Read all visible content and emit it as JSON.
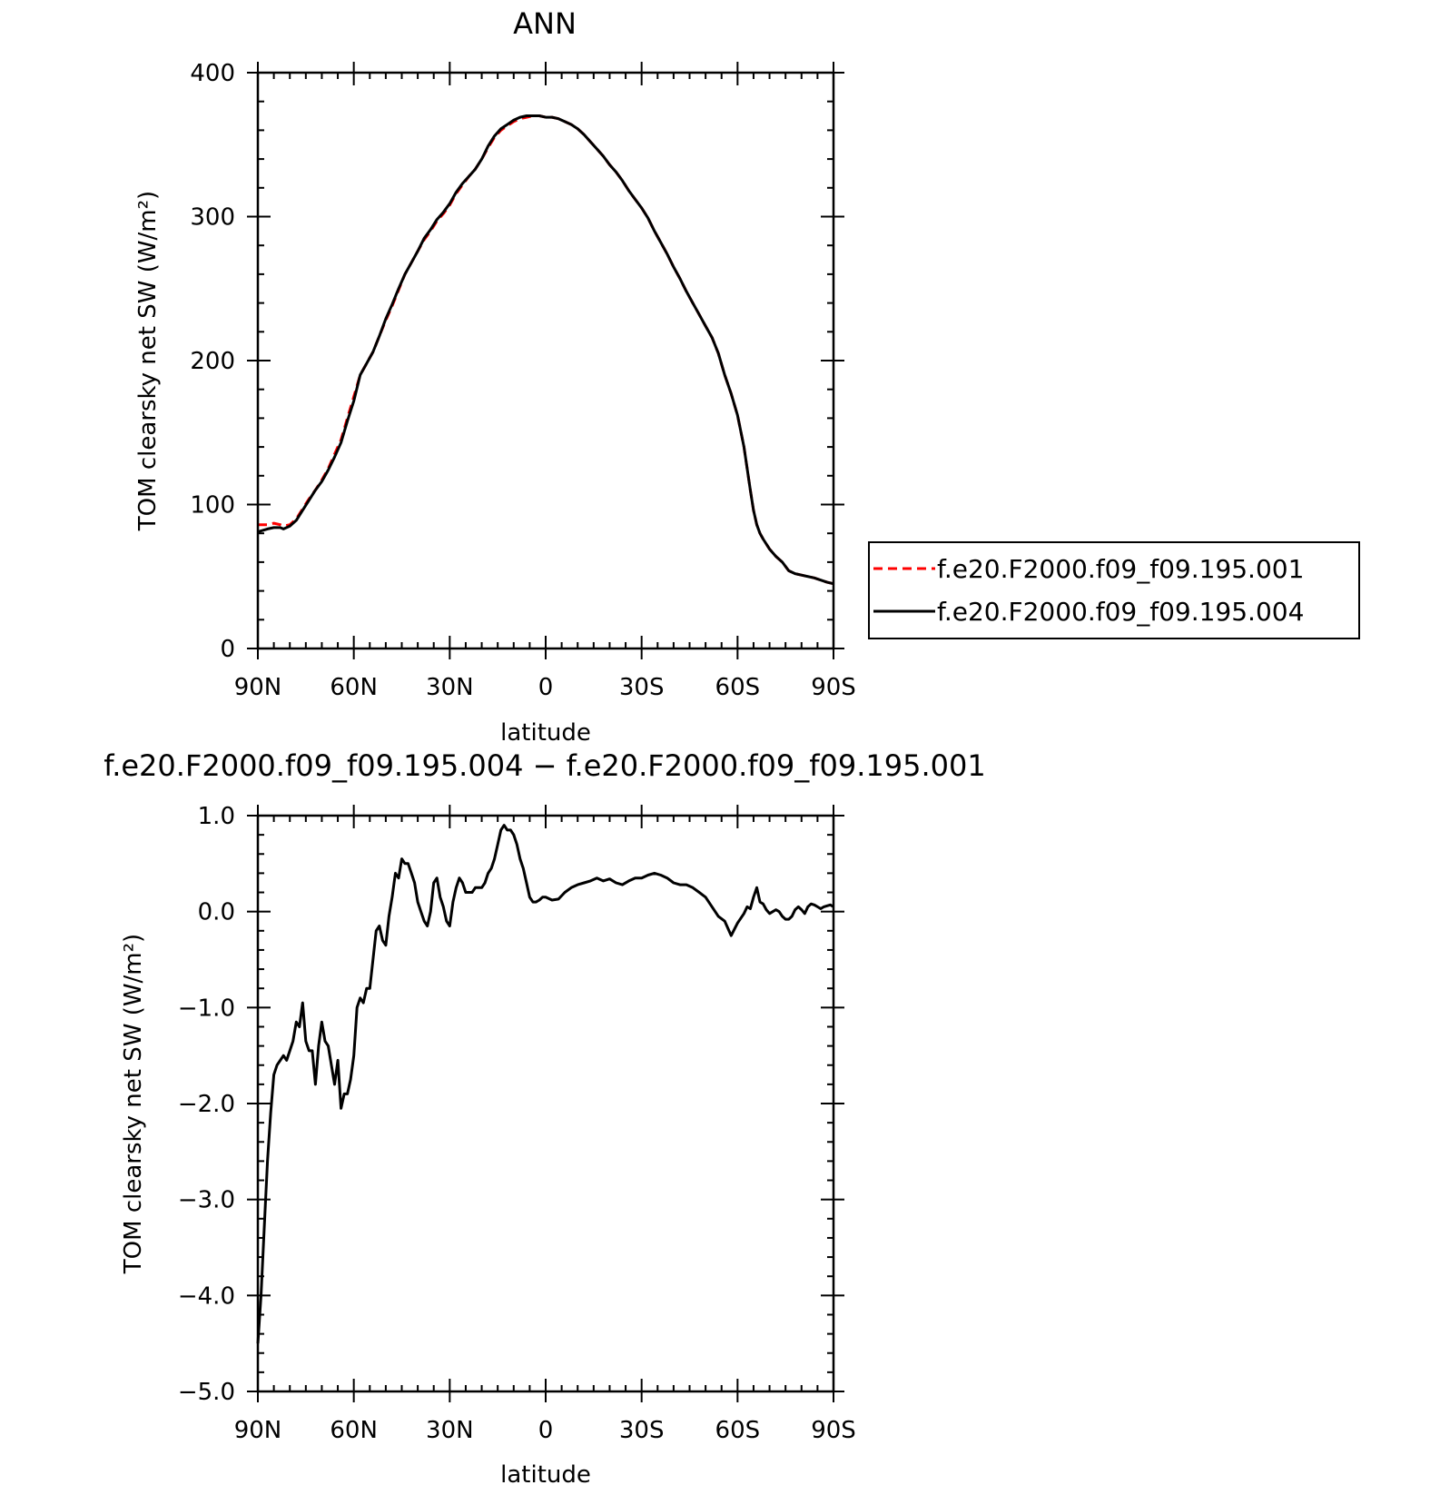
{
  "chart_data": [
    {
      "type": "line",
      "title": "ANN",
      "xlabel": "latitude",
      "ylabel": "TOM clearsky net SW (W/m²)",
      "xlim": [
        90,
        -90
      ],
      "ylim": [
        0,
        400
      ],
      "xticks": [
        {
          "value": 90,
          "label": "90N"
        },
        {
          "value": 60,
          "label": "60N"
        },
        {
          "value": 30,
          "label": "30N"
        },
        {
          "value": 0,
          "label": "0"
        },
        {
          "value": -30,
          "label": "30S"
        },
        {
          "value": -60,
          "label": "60S"
        },
        {
          "value": -90,
          "label": "90S"
        }
      ],
      "yticks": [
        {
          "value": 0,
          "label": "0"
        },
        {
          "value": 100,
          "label": "100"
        },
        {
          "value": 200,
          "label": "200"
        },
        {
          "value": 300,
          "label": "300"
        },
        {
          "value": 400,
          "label": "400"
        }
      ],
      "grid": false,
      "legend": "right",
      "series": [
        {
          "name": "f.e20.F2000.f09_f09.195.001",
          "color": "#ff0000",
          "dash": "dashed",
          "x": [
            90,
            87,
            85,
            83,
            82,
            80,
            78,
            76,
            74,
            72,
            70,
            68,
            66,
            64,
            62,
            60,
            58,
            56,
            54,
            52,
            50,
            48,
            46,
            44,
            42,
            40,
            38,
            36,
            34,
            32,
            30,
            28,
            26,
            24,
            22,
            20,
            18,
            16,
            14,
            12,
            10,
            8,
            6,
            4,
            2,
            0,
            -2,
            -4,
            -6,
            -8,
            -10,
            -12,
            -14,
            -16,
            -18,
            -20,
            -22,
            -24,
            -26,
            -28,
            -30,
            -32,
            -34,
            -36,
            -38,
            -40,
            -42,
            -44,
            -46,
            -48,
            -50,
            -52,
            -54,
            -56,
            -58,
            -60,
            -62,
            -64,
            -65,
            -66,
            -67,
            -68,
            -70,
            -72,
            -74,
            -76,
            -78,
            -80,
            -84,
            -88,
            -90
          ],
          "y": [
            86,
            86,
            87,
            86,
            85,
            86,
            90,
            97,
            104,
            110,
            117,
            125,
            135,
            145,
            160,
            175,
            190,
            198,
            206,
            217,
            228,
            238,
            249,
            260,
            268,
            276,
            284,
            290,
            297,
            302,
            308,
            316,
            322,
            328,
            333,
            340,
            348,
            355,
            360,
            363,
            366,
            368,
            369,
            370,
            370,
            369,
            369,
            368,
            366,
            364,
            361,
            357,
            352,
            347,
            342,
            336,
            331,
            325,
            318,
            312,
            306,
            299,
            290,
            282,
            274,
            265,
            257,
            248,
            240,
            232,
            224,
            216,
            205,
            190,
            177,
            162,
            140,
            110,
            96,
            86,
            80,
            76,
            69,
            64,
            60,
            54,
            52,
            51,
            49,
            46,
            45
          ]
        },
        {
          "name": "f.e20.F2000.f09_f09.195.004",
          "color": "#000000",
          "dash": "solid",
          "x": [
            90,
            87,
            85,
            83,
            82,
            80,
            78,
            76,
            74,
            72,
            70,
            68,
            66,
            64,
            62,
            60,
            58,
            56,
            54,
            52,
            50,
            48,
            46,
            44,
            42,
            40,
            38,
            36,
            34,
            32,
            30,
            28,
            26,
            24,
            22,
            20,
            18,
            16,
            14,
            12,
            10,
            8,
            6,
            4,
            2,
            0,
            -2,
            -4,
            -6,
            -8,
            -10,
            -12,
            -14,
            -16,
            -18,
            -20,
            -22,
            -24,
            -26,
            -28,
            -30,
            -32,
            -34,
            -36,
            -38,
            -40,
            -42,
            -44,
            -46,
            -48,
            -50,
            -52,
            -54,
            -56,
            -58,
            -60,
            -62,
            -64,
            -65,
            -66,
            -67,
            -68,
            -70,
            -72,
            -74,
            -76,
            -78,
            -80,
            -84,
            -88,
            -90
          ],
          "y": [
            81,
            83,
            84,
            84,
            83,
            85,
            89,
            96,
            103,
            110,
            116,
            124,
            133,
            143,
            158,
            172,
            190,
            198,
            206,
            217,
            229,
            239,
            250,
            260,
            268,
            276,
            285,
            291,
            298,
            303,
            309,
            317,
            323,
            328,
            333,
            340,
            349,
            356,
            361,
            364,
            367,
            369,
            370,
            370,
            370,
            369,
            369,
            368,
            366,
            364,
            361,
            357,
            352,
            347,
            342,
            336,
            331,
            325,
            318,
            312,
            306,
            299,
            290,
            282,
            274,
            265,
            257,
            248,
            240,
            232,
            224,
            216,
            205,
            190,
            177,
            162,
            140,
            110,
            96,
            86,
            80,
            76,
            69,
            64,
            60,
            54,
            52,
            51,
            49,
            46,
            45
          ]
        }
      ]
    },
    {
      "type": "line",
      "title": "f.e20.F2000.f09_f09.195.004 − f.e20.F2000.f09_f09.195.001",
      "xlabel": "latitude",
      "ylabel": "TOM clearsky net SW (W/m²)",
      "xlim": [
        90,
        -90
      ],
      "ylim": [
        -5,
        1
      ],
      "xticks": [
        {
          "value": 90,
          "label": "90N"
        },
        {
          "value": 60,
          "label": "60N"
        },
        {
          "value": 30,
          "label": "30N"
        },
        {
          "value": 0,
          "label": "0"
        },
        {
          "value": -30,
          "label": "30S"
        },
        {
          "value": -60,
          "label": "60S"
        },
        {
          "value": -90,
          "label": "90S"
        }
      ],
      "yticks": [
        {
          "value": 1,
          "label": "1.0"
        },
        {
          "value": 0,
          "label": "0.0"
        },
        {
          "value": -1,
          "label": "−1.0"
        },
        {
          "value": -2,
          "label": "−2.0"
        },
        {
          "value": -3,
          "label": "−3.0"
        },
        {
          "value": -4,
          "label": "−4.0"
        },
        {
          "value": -5,
          "label": "−5.0"
        }
      ],
      "grid": false,
      "series": [
        {
          "color": "#000000",
          "dash": "solid",
          "x": [
            90,
            89,
            88,
            87,
            86,
            85,
            84,
            83,
            82,
            81,
            80,
            79,
            78,
            77,
            76,
            75,
            74,
            73,
            72,
            71,
            70,
            69,
            68,
            67,
            66,
            65,
            64,
            63,
            62,
            61,
            60,
            59,
            58,
            57,
            56,
            55,
            54,
            53,
            52,
            51,
            50,
            49,
            48,
            47,
            46,
            45,
            44,
            43,
            42,
            41,
            40,
            39,
            38,
            37,
            36,
            35,
            34,
            33,
            32,
            31,
            30,
            29,
            28,
            27,
            26,
            25,
            24,
            23,
            22,
            21,
            20,
            19,
            18,
            17,
            16,
            15,
            14,
            13,
            12,
            11,
            10,
            9,
            8,
            7,
            6,
            5,
            4,
            3,
            2,
            1,
            0,
            -2,
            -4,
            -6,
            -8,
            -10,
            -12,
            -14,
            -16,
            -18,
            -20,
            -22,
            -24,
            -26,
            -28,
            -30,
            -32,
            -34,
            -36,
            -38,
            -40,
            -42,
            -44,
            -46,
            -48,
            -50,
            -52,
            -54,
            -56,
            -58,
            -60,
            -62,
            -63,
            -64,
            -65,
            -66,
            -67,
            -68,
            -69,
            -70,
            -71,
            -72,
            -73,
            -74,
            -75,
            -76,
            -77,
            -78,
            -79,
            -80,
            -81,
            -82,
            -83,
            -84,
            -85,
            -86,
            -87,
            -88,
            -89,
            -90
          ],
          "y": [
            -4.5,
            -4.0,
            -3.3,
            -2.6,
            -2.1,
            -1.7,
            -1.6,
            -1.55,
            -1.5,
            -1.55,
            -1.45,
            -1.35,
            -1.15,
            -1.2,
            -0.95,
            -1.35,
            -1.45,
            -1.45,
            -1.8,
            -1.4,
            -1.15,
            -1.35,
            -1.4,
            -1.6,
            -1.8,
            -1.55,
            -2.05,
            -1.9,
            -1.9,
            -1.75,
            -1.5,
            -1.0,
            -0.9,
            -0.95,
            -0.8,
            -0.8,
            -0.5,
            -0.2,
            -0.15,
            -0.3,
            -0.35,
            -0.05,
            0.15,
            0.4,
            0.35,
            0.55,
            0.5,
            0.5,
            0.4,
            0.3,
            0.1,
            0.0,
            -0.1,
            -0.15,
            0.0,
            0.3,
            0.35,
            0.15,
            0.05,
            -0.1,
            -0.15,
            0.1,
            0.25,
            0.35,
            0.3,
            0.2,
            0.2,
            0.2,
            0.25,
            0.25,
            0.25,
            0.3,
            0.4,
            0.45,
            0.55,
            0.7,
            0.85,
            0.9,
            0.85,
            0.85,
            0.8,
            0.7,
            0.55,
            0.45,
            0.3,
            0.15,
            0.1,
            0.1,
            0.12,
            0.15,
            0.15,
            0.12,
            0.13,
            0.2,
            0.25,
            0.28,
            0.3,
            0.32,
            0.35,
            0.32,
            0.34,
            0.3,
            0.28,
            0.32,
            0.35,
            0.35,
            0.38,
            0.4,
            0.38,
            0.35,
            0.3,
            0.28,
            0.28,
            0.25,
            0.2,
            0.15,
            0.05,
            -0.05,
            -0.1,
            -0.25,
            -0.12,
            -0.02,
            0.05,
            0.03,
            0.15,
            0.25,
            0.1,
            0.08,
            0.02,
            -0.02,
            0.0,
            0.02,
            0.0,
            -0.05,
            -0.08,
            -0.08,
            -0.05,
            0.02,
            0.05,
            0.02,
            -0.02,
            0.05,
            0.08,
            0.07,
            0.05,
            0.03,
            0.05,
            0.06,
            0.07,
            0.05
          ]
        }
      ]
    }
  ]
}
